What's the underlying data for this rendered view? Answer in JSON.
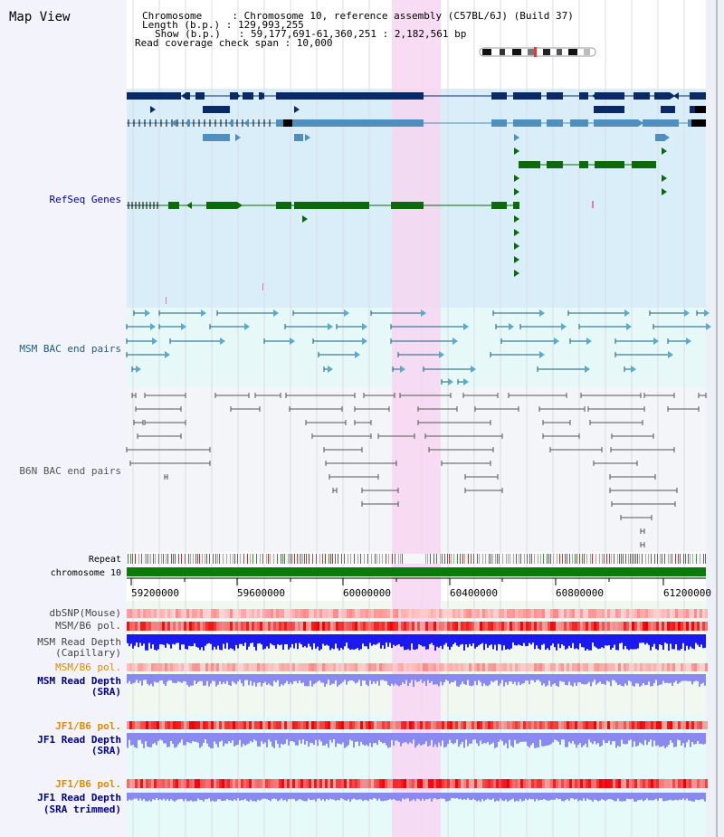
{
  "title": "Map View",
  "info": {
    "lines": [
      "Chromosome     : Chromosome 10, reference assembly (C57BL/6J) (Build 37)",
      "Length (b.p.) : 129,993,255",
      "Show (b.p.)   : 59,177,691-61,360,251 : 2,182,561 bp",
      "Read coverage check span : 10,000"
    ]
  },
  "track_labels": {
    "refseq": "RefSeq Genes",
    "msm_bac": "MSM BAC end pairs",
    "b6n_bac": "B6N BAC end pairs",
    "repeat": "Repeat",
    "chromosome": "chromosome 10",
    "dbsnp": "dbSNP(Mouse)",
    "msm_b6_pol": "MSM/B6 pol.",
    "msm_depth_cap_1": "MSM Read Depth",
    "msm_depth_cap_2": "(Capillary)",
    "msm_b6_pol_2": "MSM/B6 pol.",
    "msm_depth_sra_1": "MSM Read Depth",
    "msm_depth_sra_2": "(SRA)",
    "jf1_b6_pol": "JF1/B6 pol.",
    "jf1_depth_sra_1": "JF1 Read Depth",
    "jf1_depth_sra_2": "(SRA)",
    "jf1_b6_pol_2": "JF1/B6 pol.",
    "jf1_depth_trim_1": "JF1 Read Depth",
    "jf1_depth_trim_2": "(SRA trimmed)"
  },
  "axis": {
    "ticks": [
      "59200000",
      "59600000",
      "60000000",
      "60400000",
      "60800000",
      "61200000"
    ]
  },
  "colors": {
    "refseq_dark": "#0a2a66",
    "refseq_light": "#4f8fbd",
    "refseq_green": "#0b6b0b",
    "msm_bac": "#1a5f7a",
    "b6n_bac": "#555555",
    "highlight": "#f7d6f2",
    "label_blue": "#00008b",
    "label_orange": "#e08a00",
    "depth_dark": "#1a1aee",
    "depth_light": "#8a8aee",
    "pol_red": "#ee3333",
    "chrom_green": "#0a7a0a"
  }
}
